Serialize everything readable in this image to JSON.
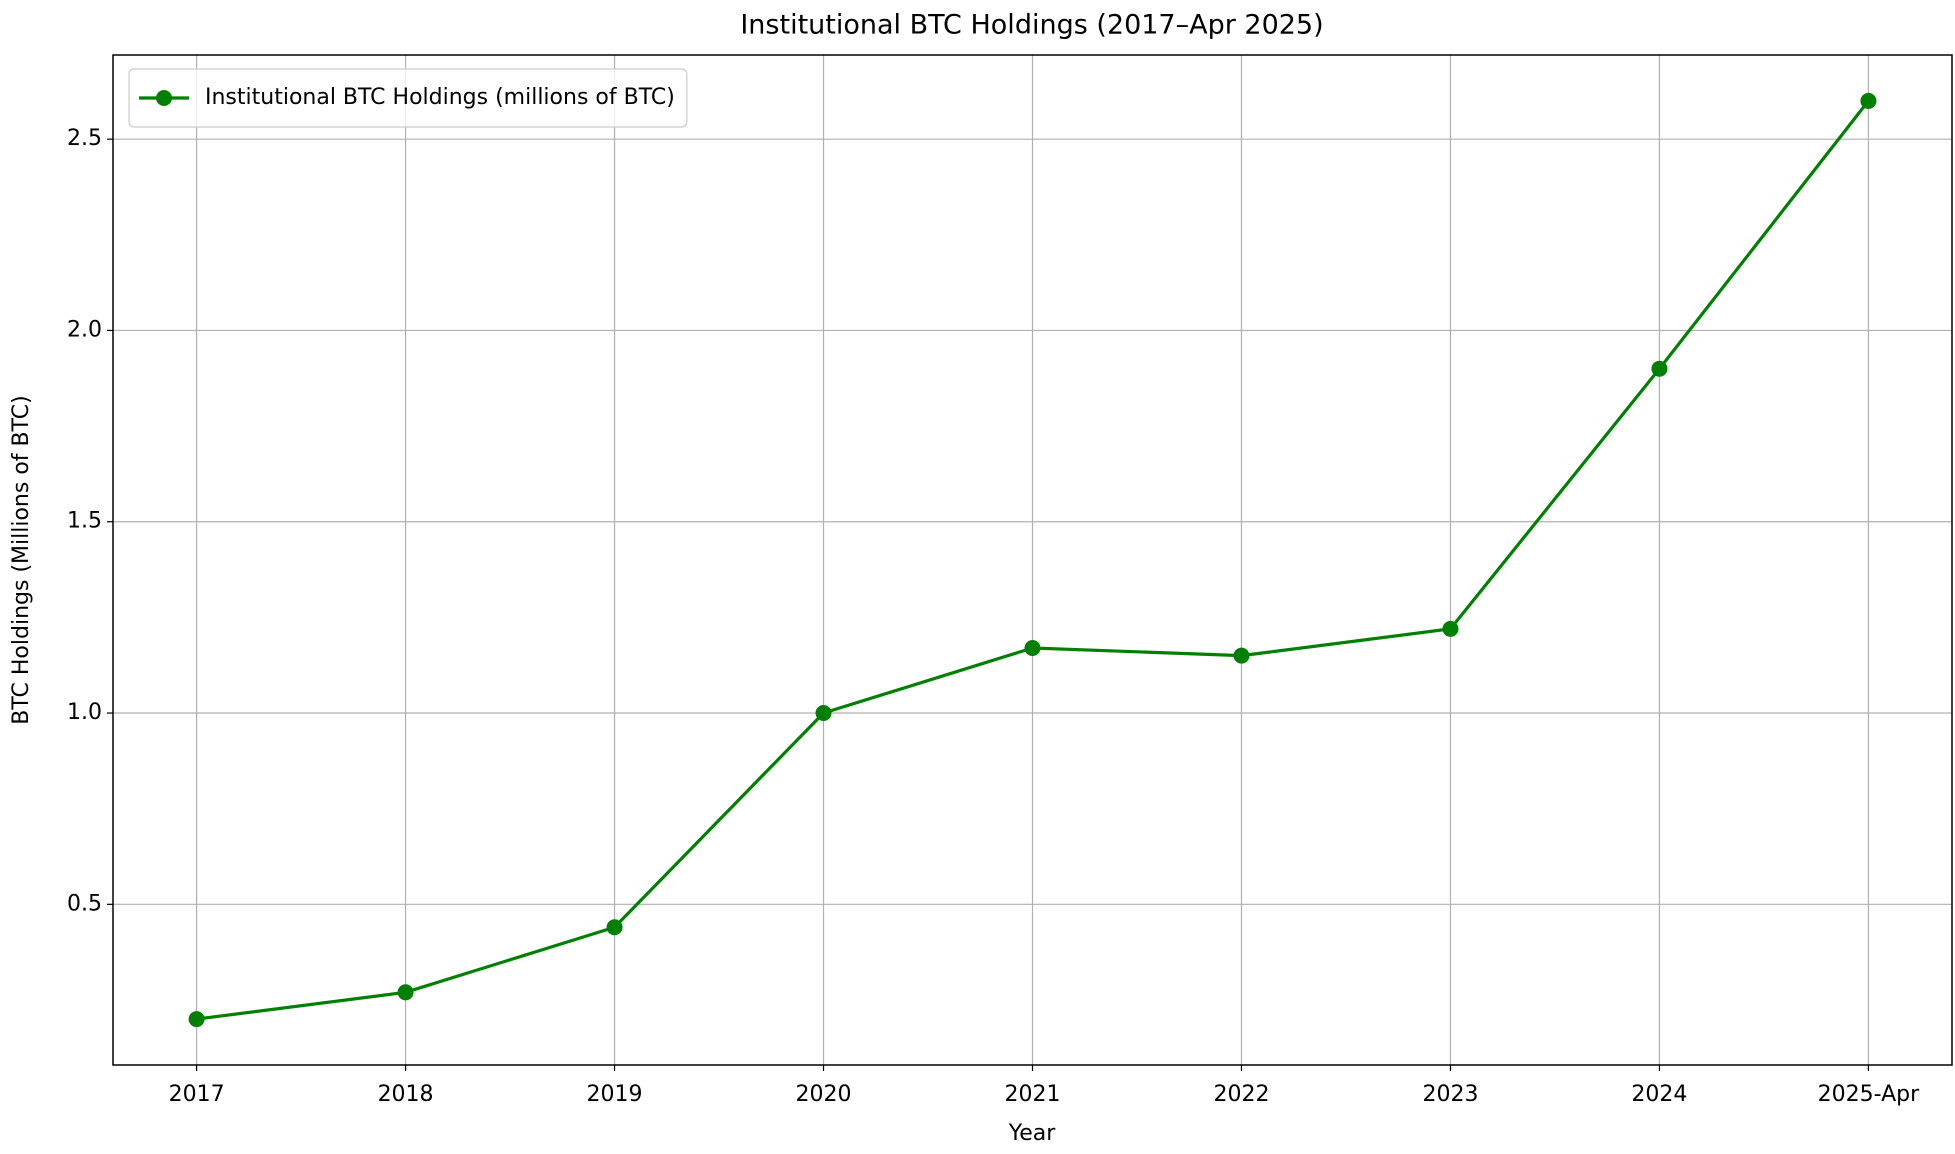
{
  "chart_data": {
    "type": "line",
    "title": "Institutional BTC Holdings (2017–Apr 2025)",
    "x_label": "Year",
    "y_label": "BTC Holdings (Millions of BTC)",
    "categories": [
      "2017",
      "2018",
      "2019",
      "2020",
      "2021",
      "2022",
      "2023",
      "2024",
      "2025-Apr"
    ],
    "series": [
      {
        "name": "Institutional BTC Holdings (millions of BTC)",
        "color": "#008000",
        "values": [
          0.2,
          0.27,
          0.44,
          1.0,
          1.17,
          1.15,
          1.22,
          1.9,
          2.6
        ]
      }
    ],
    "ylim": [
      0.08,
      2.72
    ],
    "yticks": [
      0.5,
      {
        "value": 1,
        "label": "1.0"
      },
      1.5,
      {
        "value": 2,
        "label": "2.0"
      },
      2.5
    ],
    "grid": true,
    "legend": "upper-left"
  }
}
